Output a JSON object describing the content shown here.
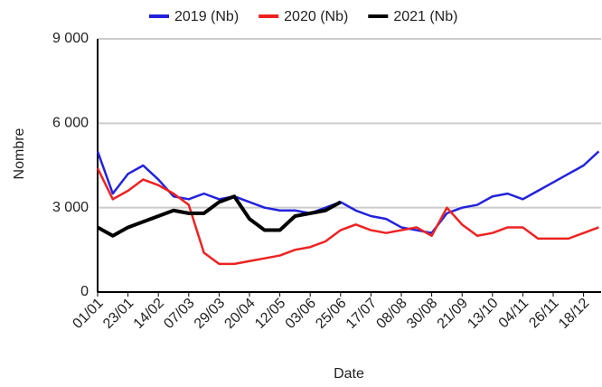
{
  "chart_data": {
    "type": "line",
    "x_label": "Date",
    "y_label": "Nombre",
    "categories": [
      "01/01",
      null,
      "23/01",
      null,
      "14/02",
      null,
      "07/03",
      null,
      "29/03",
      null,
      "20/04",
      null,
      "12/05",
      null,
      "03/06",
      null,
      "25/06",
      null,
      "17/07",
      null,
      "08/08",
      null,
      "30/08",
      null,
      "21/09",
      null,
      "13/10",
      null,
      "04/11",
      null,
      "26/11",
      null,
      "18/12",
      null
    ],
    "series": [
      {
        "name": "2019 (Nb)",
        "color": "#2222dd",
        "values": [
          5000,
          3500,
          4200,
          4500,
          4000,
          3400,
          3300,
          3500,
          3300,
          3400,
          3200,
          3000,
          2900,
          2900,
          2800,
          3000,
          3200,
          2900,
          2700,
          2600,
          2300,
          2200,
          2100,
          2800,
          3000,
          3100,
          3400,
          3500,
          3300,
          3600,
          3900,
          4200,
          4500,
          5000
        ]
      },
      {
        "name": "2020 (Nb)",
        "color": "#ee2222",
        "values": [
          4400,
          3300,
          3600,
          4000,
          3800,
          3500,
          3100,
          1400,
          1000,
          1000,
          1100,
          1200,
          1300,
          1500,
          1600,
          1800,
          2200,
          2400,
          2200,
          2100,
          2200,
          2300,
          2000,
          3000,
          2400,
          2000,
          2100,
          2300,
          2300,
          1900,
          1900,
          1900,
          2100,
          2300
        ]
      },
      {
        "name": "2021 (Nb)",
        "color": "#000000",
        "values": [
          2300,
          2000,
          2300,
          2500,
          2700,
          2900,
          2800,
          2800,
          3200,
          3400,
          2600,
          2200,
          2200,
          2700,
          2800,
          2900,
          3200,
          null,
          null,
          null,
          null,
          null,
          null,
          null,
          null,
          null,
          null,
          null,
          null,
          null,
          null,
          null,
          null,
          null
        ]
      }
    ],
    "ylim": [
      0,
      9000
    ],
    "yticks": [
      {
        "value": 0,
        "label": "0"
      },
      {
        "value": 3000,
        "label": "3 000"
      },
      {
        "value": 6000,
        "label": "6 000"
      },
      {
        "value": 9000,
        "label": "9 000"
      }
    ],
    "grid": true,
    "legend": "top"
  }
}
